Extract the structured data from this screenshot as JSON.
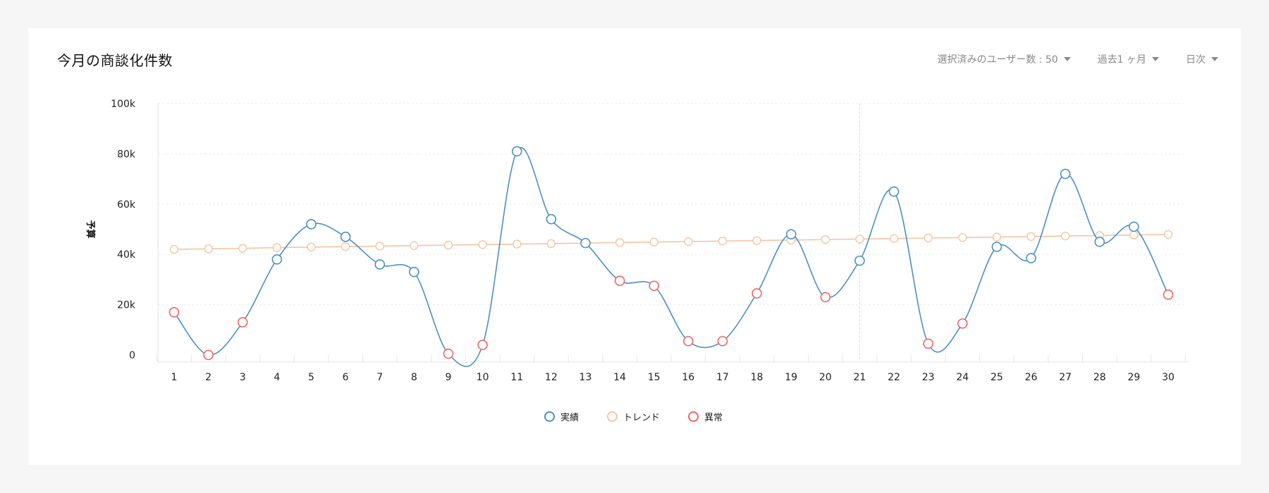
{
  "header": {
    "title": "今月の商談化件数",
    "controls": [
      {
        "label": "選択済みのユーザー数 : 50"
      },
      {
        "label": "過去1 ヶ月"
      },
      {
        "label": "日次"
      }
    ]
  },
  "legend": [
    {
      "label": "実績",
      "color": "#4a90c8"
    },
    {
      "label": "トレンド",
      "color": "#f6c4a3"
    },
    {
      "label": "異常",
      "color": "#ee6666"
    }
  ],
  "chart_data": {
    "type": "line",
    "ylabel": "予算",
    "xlabel": "",
    "ylim": [
      0,
      100000
    ],
    "yticks": [
      0,
      20000,
      40000,
      60000,
      80000,
      100000
    ],
    "ytick_labels": [
      "0",
      "20k",
      "40k",
      "60k",
      "80k",
      "100k"
    ],
    "categories": [
      "1",
      "2",
      "3",
      "4",
      "5",
      "6",
      "7",
      "8",
      "9",
      "10",
      "11",
      "12",
      "13",
      "14",
      "15",
      "16",
      "17",
      "18",
      "19",
      "20",
      "21",
      "22",
      "23",
      "24",
      "25",
      "26",
      "27",
      "28",
      "29",
      "30"
    ],
    "highlight_category": "21",
    "grid": "horizontal dashed",
    "legend_position": "bottom-center",
    "series": [
      {
        "name": "実績",
        "color": "#4a90c8",
        "values": [
          17000,
          0,
          13000,
          38000,
          52000,
          47000,
          36000,
          33000,
          500,
          4000,
          81000,
          54000,
          44500,
          29500,
          27500,
          5500,
          5500,
          24500,
          48000,
          23000,
          37500,
          65000,
          4500,
          12500,
          43000,
          38500,
          72000,
          45000,
          51000,
          24000
        ]
      },
      {
        "name": "トレンド",
        "color": "#f6c4a3",
        "values": [
          42000,
          42200,
          42400,
          42700,
          42900,
          43100,
          43300,
          43500,
          43700,
          43900,
          44100,
          44300,
          44500,
          44700,
          44900,
          45100,
          45300,
          45500,
          45700,
          45900,
          46100,
          46300,
          46500,
          46700,
          46900,
          47100,
          47300,
          47500,
          47700,
          47900
        ]
      }
    ],
    "anomalies": [
      1,
      2,
      3,
      9,
      10,
      14,
      15,
      16,
      17,
      18,
      20,
      23,
      24,
      30
    ]
  }
}
